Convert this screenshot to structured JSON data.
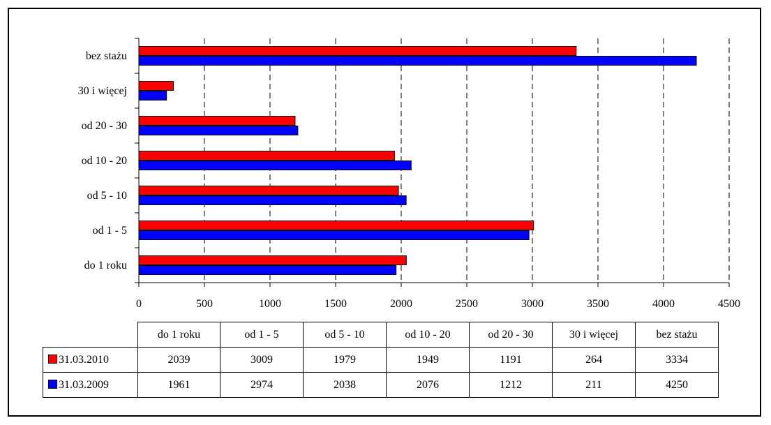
{
  "chart_data": {
    "type": "bar",
    "orientation": "horizontal",
    "categories": [
      "do 1 roku",
      "od 1 - 5",
      "od 5 - 10",
      "od 10 - 20",
      "od 20 - 30",
      "30 i więcej",
      "bez stażu"
    ],
    "series": [
      {
        "name": "31.03.2010",
        "color": "#ff0000",
        "values": [
          2039,
          3009,
          1979,
          1949,
          1191,
          264,
          3334
        ]
      },
      {
        "name": "31.03.2009",
        "color": "#0000ff",
        "values": [
          1961,
          2974,
          2038,
          2076,
          1212,
          211,
          4250
        ]
      }
    ],
    "xlim": [
      0,
      4500
    ],
    "xticks": [
      0,
      500,
      1000,
      1500,
      2000,
      2500,
      3000,
      3500,
      4000,
      4500
    ],
    "grid": "vertical dashed",
    "legend": "data table below chart",
    "title": "",
    "xlabel": "",
    "ylabel": ""
  }
}
